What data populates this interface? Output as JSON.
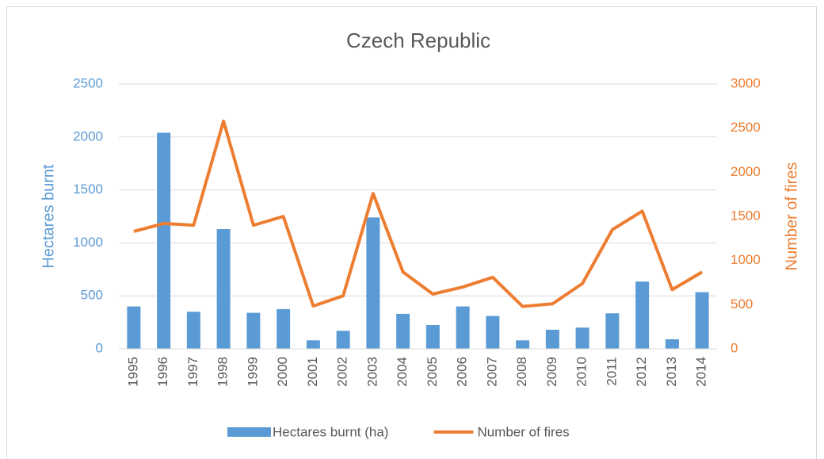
{
  "chart_data": {
    "type": "bar",
    "title": "Czech Republic",
    "categories": [
      "1995",
      "1996",
      "1997",
      "1998",
      "1999",
      "2000",
      "2001",
      "2002",
      "2003",
      "2004",
      "2005",
      "2006",
      "2007",
      "2008",
      "2009",
      "2010",
      "2011",
      "2012",
      "2013",
      "2014"
    ],
    "series": [
      {
        "name": "Hectares burnt (ha)",
        "type": "bar",
        "color": "#5b9bd5",
        "axis": "y",
        "values": [
          400,
          2040,
          350,
          1130,
          340,
          375,
          80,
          170,
          1240,
          330,
          225,
          400,
          310,
          80,
          180,
          200,
          335,
          635,
          90,
          535
        ]
      },
      {
        "name": "Number of fires",
        "type": "line",
        "color": "#ed7d31",
        "axis": "y2",
        "values": [
          1330,
          1420,
          1400,
          2580,
          1400,
          1500,
          485,
          600,
          1760,
          870,
          620,
          700,
          810,
          480,
          510,
          740,
          1350,
          1560,
          670,
          870
        ]
      }
    ],
    "y_label": "Hectares burnt",
    "y2_label": "Number of fires",
    "ylim": [
      0,
      2500
    ],
    "yticks": [
      0,
      500,
      1000,
      1500,
      2000,
      2500
    ],
    "y2lim": [
      0,
      3000
    ],
    "y2ticks": [
      0,
      500,
      1000,
      1500,
      2000,
      2500,
      3000
    ],
    "grid": true,
    "legend": "bottom"
  }
}
